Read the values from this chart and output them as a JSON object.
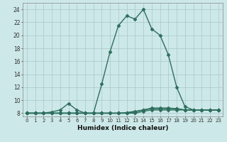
{
  "x": [
    0,
    1,
    2,
    3,
    4,
    5,
    6,
    7,
    8,
    9,
    10,
    11,
    12,
    13,
    14,
    15,
    16,
    17,
    18,
    19,
    20,
    21,
    22,
    23
  ],
  "y_main": [
    8,
    8,
    8,
    8.2,
    8.5,
    9.5,
    8.5,
    8,
    8,
    12.5,
    17.5,
    21.5,
    23,
    22.5,
    24,
    21,
    20,
    17,
    12,
    9,
    8.5,
    8.5,
    8.5,
    8.5
  ],
  "y_flat1": [
    8,
    8,
    8,
    8,
    8,
    8,
    8,
    8,
    8,
    8,
    8,
    8,
    8,
    8,
    8.3,
    8.5,
    8.5,
    8.5,
    8.5,
    8.5,
    8.5,
    8.5,
    8.5,
    8.5
  ],
  "y_flat2": [
    8,
    8,
    8,
    8,
    8,
    8,
    8,
    8,
    8,
    8,
    8,
    8,
    8,
    8.2,
    8.5,
    8.7,
    8.7,
    8.7,
    8.7,
    8.5,
    8.5,
    8.5,
    8.5,
    8.5
  ],
  "y_flat3": [
    8,
    8,
    8,
    8,
    8,
    8,
    8,
    8,
    8,
    8,
    8,
    8,
    8.1,
    8.3,
    8.5,
    8.8,
    8.8,
    8.8,
    8.7,
    8.5,
    8.5,
    8.5,
    8.5,
    8.5
  ],
  "line_color": "#2d6e5e",
  "bg_color": "#cde8e8",
  "grid_color": "#a8c8c8",
  "xlabel": "Humidex (Indice chaleur)",
  "ylim": [
    7.5,
    25
  ],
  "xlim": [
    -0.5,
    23.5
  ],
  "yticks": [
    8,
    10,
    12,
    14,
    16,
    18,
    20,
    22,
    24
  ],
  "xticks": [
    0,
    1,
    2,
    3,
    4,
    5,
    6,
    7,
    8,
    9,
    10,
    11,
    12,
    13,
    14,
    15,
    16,
    17,
    18,
    19,
    20,
    21,
    22,
    23
  ],
  "marker": "D",
  "marker_size": 2.5,
  "line_width": 1.0
}
